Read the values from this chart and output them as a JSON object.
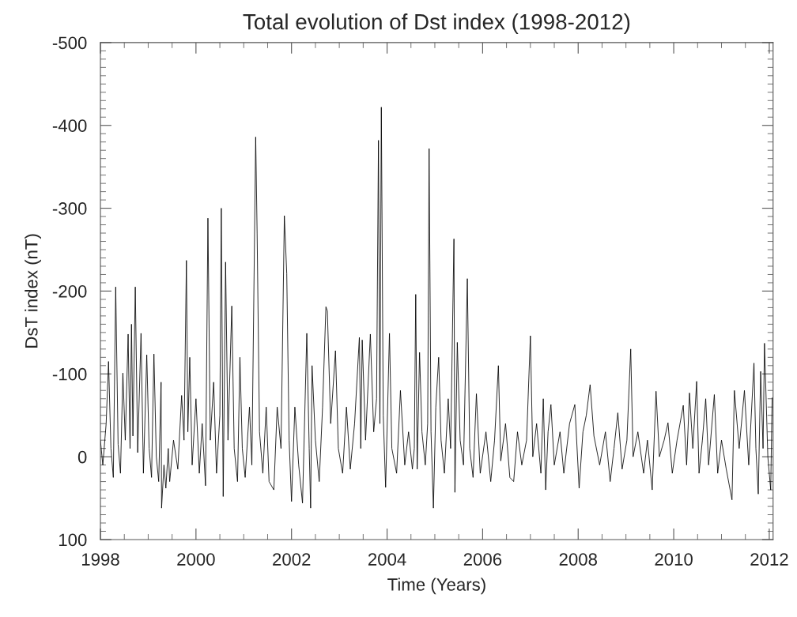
{
  "chart_data": {
    "type": "line",
    "title": "Total evolution of Dst index (1998-2012)",
    "xlabel": "Time (Years)",
    "ylabel": "DsT index (nT)",
    "xlim": [
      1998,
      2012.08
    ],
    "xticks": [
      1998,
      2000,
      2002,
      2004,
      2006,
      2008,
      2010,
      2012
    ],
    "ylim": [
      100,
      -500
    ],
    "yticks": [
      100,
      0,
      -100,
      -200,
      -300,
      -400,
      -500
    ],
    "series": [
      {
        "color": "#000000",
        "x": [
          1998.0,
          1998.05,
          1998.12,
          1998.17,
          1998.22,
          1998.27,
          1998.32,
          1998.37,
          1998.42,
          1998.47,
          1998.52,
          1998.58,
          1998.62,
          1998.65,
          1998.68,
          1998.73,
          1998.78,
          1998.85,
          1998.9,
          1998.97,
          1999.02,
          1999.07,
          1999.12,
          1999.17,
          1999.22,
          1999.27,
          1999.28,
          1999.33,
          1999.37,
          1999.42,
          1999.45,
          1999.53,
          1999.62,
          1999.7,
          1999.75,
          1999.8,
          1999.83,
          1999.87,
          1999.92,
          2000.0,
          2000.07,
          2000.13,
          2000.2,
          2000.25,
          2000.3,
          2000.37,
          2000.43,
          2000.5,
          2000.53,
          2000.57,
          2000.62,
          2000.67,
          2000.75,
          2000.8,
          2000.87,
          2000.92,
          2000.97,
          2001.03,
          2001.12,
          2001.17,
          2001.25,
          2001.28,
          2001.33,
          2001.4,
          2001.47,
          2001.53,
          2001.63,
          2001.7,
          2001.78,
          2001.85,
          2001.9,
          2001.95,
          2002.0,
          2002.07,
          2002.15,
          2002.23,
          2002.32,
          2002.37,
          2002.4,
          2002.43,
          2002.5,
          2002.58,
          2002.65,
          2002.72,
          2002.75,
          2002.82,
          2002.92,
          2002.98,
          2003.07,
          2003.15,
          2003.23,
          2003.32,
          2003.42,
          2003.45,
          2003.48,
          2003.55,
          2003.65,
          2003.72,
          2003.78,
          2003.82,
          2003.85,
          2003.88,
          2003.92,
          2003.97,
          2004.05,
          2004.1,
          2004.2,
          2004.28,
          2004.37,
          2004.45,
          2004.53,
          2004.57,
          2004.6,
          2004.63,
          2004.68,
          2004.73,
          2004.8,
          2004.85,
          2004.88,
          2004.92,
          2004.97,
          2005.02,
          2005.08,
          2005.13,
          2005.2,
          2005.28,
          2005.33,
          2005.4,
          2005.42,
          2005.47,
          2005.53,
          2005.6,
          2005.68,
          2005.73,
          2005.8,
          2005.87,
          2005.95,
          2006.07,
          2006.17,
          2006.25,
          2006.33,
          2006.38,
          2006.48,
          2006.57,
          2006.65,
          2006.73,
          2006.82,
          2006.92,
          2007.0,
          2007.05,
          2007.13,
          2007.22,
          2007.27,
          2007.32,
          2007.37,
          2007.43,
          2007.5,
          2007.62,
          2007.7,
          2007.82,
          2007.93,
          2008.02,
          2008.1,
          2008.17,
          2008.25,
          2008.33,
          2008.45,
          2008.57,
          2008.67,
          2008.75,
          2008.83,
          2008.92,
          2009.02,
          2009.1,
          2009.15,
          2009.25,
          2009.37,
          2009.45,
          2009.55,
          2009.63,
          2009.7,
          2009.8,
          2009.88,
          2009.97,
          2010.07,
          2010.2,
          2010.27,
          2010.33,
          2010.4,
          2010.48,
          2010.53,
          2010.6,
          2010.67,
          2010.73,
          2010.85,
          2010.92,
          2011.0,
          2011.1,
          2011.22,
          2011.27,
          2011.37,
          2011.48,
          2011.57,
          2011.68,
          2011.72,
          2011.77,
          2011.82,
          2011.87,
          2011.9,
          2011.97,
          2012.03,
          2012.06
        ],
        "values": [
          -20,
          10,
          -40,
          -115,
          -10,
          25,
          -205,
          -15,
          20,
          -101,
          -20,
          -148,
          -10,
          -160,
          -25,
          -205,
          -5,
          -149,
          20,
          -123,
          -10,
          25,
          -124,
          0,
          30,
          -90,
          62,
          10,
          38,
          -10,
          30,
          -20,
          15,
          -74,
          -20,
          -237,
          -30,
          -120,
          10,
          -70,
          20,
          -40,
          35,
          -288,
          -20,
          -90,
          20,
          -50,
          -300,
          48,
          -235,
          -20,
          -182,
          -10,
          30,
          -120,
          -10,
          25,
          -60,
          10,
          -386,
          -270,
          -30,
          20,
          -60,
          30,
          40,
          -60,
          -10,
          -291,
          -221,
          -20,
          54,
          -60,
          10,
          56,
          -149,
          -10,
          62,
          -110,
          -20,
          30,
          -60,
          -181,
          -176,
          -40,
          -128,
          -10,
          20,
          -60,
          15,
          -40,
          -144,
          -10,
          -141,
          -20,
          -148,
          -30,
          -70,
          -382,
          -40,
          -422,
          -50,
          37,
          -149,
          -10,
          20,
          -80,
          10,
          -30,
          15,
          -10,
          -196,
          15,
          -126,
          -30,
          10,
          -40,
          -372,
          -30,
          62,
          -60,
          -120,
          -20,
          20,
          -70,
          -10,
          -263,
          43,
          -138,
          -20,
          10,
          -215,
          -10,
          25,
          -76,
          20,
          -30,
          30,
          -20,
          -110,
          5,
          -40,
          25,
          30,
          -30,
          10,
          -20,
          -146,
          0,
          -40,
          20,
          -70,
          40,
          -30,
          -63,
          10,
          -30,
          20,
          -40,
          -63,
          38,
          -30,
          -50,
          -87,
          -25,
          10,
          -30,
          30,
          -10,
          -53,
          15,
          -20,
          -130,
          0,
          -30,
          20,
          -20,
          40,
          -79,
          0,
          -20,
          -41,
          20,
          -20,
          -62,
          10,
          -77,
          -10,
          -91,
          20,
          -20,
          -70,
          10,
          -75,
          20,
          -20,
          15,
          52,
          -80,
          -10,
          -80,
          10,
          -113,
          -10,
          45,
          -103,
          -10,
          -137,
          0,
          40,
          -71
        ]
      }
    ]
  }
}
